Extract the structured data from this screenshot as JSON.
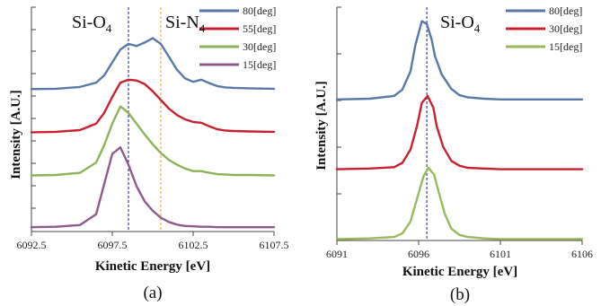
{
  "chart_data": [
    {
      "type": "line",
      "panel_label": "(a)",
      "xlabel": "Kinetic Energy [eV]",
      "ylabel": "Intensity [A.U.]",
      "xlim": [
        6092.5,
        6107.5
      ],
      "x_ticks": [
        "6092.5",
        "6097.5",
        "6102.5",
        "6107.5"
      ],
      "y_tick_labels": "none",
      "grid": false,
      "legend_position": "top-right",
      "annotations": [
        {
          "label": "Si-O",
          "subscript": "4",
          "reference_line_x": 6098.5,
          "line_style": "dashed",
          "line_color": "#1a1a8c"
        },
        {
          "label": "Si-N",
          "subscript": "4",
          "reference_line_x": 6100.5,
          "line_style": "dashed",
          "line_color": "#e8a317"
        }
      ],
      "series": [
        {
          "name": "80[deg]",
          "color": "#5879a8",
          "offset": 3.2,
          "x": [
            6092.5,
            6094,
            6095.5,
            6096.5,
            6097,
            6097.5,
            6098,
            6098.5,
            6099,
            6099.5,
            6100,
            6100.5,
            6101,
            6101.5,
            6102,
            6102.5,
            6103,
            6103.5,
            6104,
            6104.5,
            6105,
            6106,
            6107.5
          ],
          "y": [
            0,
            0.01,
            0.05,
            0.15,
            0.32,
            0.62,
            0.92,
            1.05,
            1.0,
            1.08,
            1.18,
            1.05,
            0.75,
            0.45,
            0.25,
            0.17,
            0.22,
            0.14,
            0.07,
            0.04,
            0.03,
            0.02,
            0.01
          ]
        },
        {
          "name": "55[deg]",
          "color": "#c8202f",
          "offset": 2.2,
          "x": [
            6092.5,
            6094,
            6095.5,
            6096.5,
            6097,
            6097.5,
            6098,
            6098.5,
            6099,
            6099.5,
            6100,
            6100.5,
            6101,
            6101.5,
            6102,
            6102.5,
            6103,
            6103.5,
            6104,
            6104.5,
            6105,
            6106,
            6107.5
          ],
          "y": [
            0,
            0.01,
            0.05,
            0.2,
            0.45,
            0.82,
            1.15,
            1.22,
            1.2,
            1.12,
            0.95,
            0.75,
            0.55,
            0.4,
            0.3,
            0.24,
            0.22,
            0.14,
            0.07,
            0.04,
            0.03,
            0.02,
            0.01
          ]
        },
        {
          "name": "30[deg]",
          "color": "#8db35a",
          "offset": 1.2,
          "x": [
            6092.5,
            6094,
            6095.5,
            6096.5,
            6097,
            6097.5,
            6098,
            6098.5,
            6099,
            6099.5,
            6100,
            6100.5,
            6101,
            6101.5,
            6102,
            6102.5,
            6103,
            6103.5,
            6104,
            6104.5,
            6105,
            6106,
            6107.5
          ],
          "y": [
            0,
            0.01,
            0.06,
            0.3,
            0.7,
            1.2,
            1.6,
            1.45,
            1.2,
            0.95,
            0.72,
            0.52,
            0.36,
            0.25,
            0.16,
            0.1,
            0.1,
            0.06,
            0.03,
            0.02,
            0.01,
            0.01,
            0.0
          ]
        },
        {
          "name": "15[deg]",
          "color": "#8c5b8c",
          "offset": 0,
          "x": [
            6092.5,
            6094,
            6095.5,
            6096.5,
            6097,
            6097.5,
            6098,
            6098.5,
            6099,
            6099.5,
            6100,
            6100.5,
            6101,
            6101.5,
            6102,
            6102.5,
            6103,
            6103.5,
            6104,
            6104.5,
            6105,
            6106,
            6107.5
          ],
          "y": [
            0,
            0.01,
            0.05,
            0.3,
            1.0,
            1.7,
            1.85,
            1.45,
            0.95,
            0.6,
            0.38,
            0.22,
            0.12,
            0.06,
            0.03,
            0.02,
            0.01,
            0.01,
            0.0,
            0.0,
            0.0,
            0.0,
            0.0
          ]
        }
      ]
    },
    {
      "type": "line",
      "panel_label": "(b)",
      "xlabel": "Kinetic Energy [eV]",
      "ylabel": "Intensity [A.U.]",
      "xlim": [
        6091,
        6106
      ],
      "x_ticks": [
        "6091",
        "6096",
        "6101",
        "6106"
      ],
      "y_tick_labels": "none",
      "grid": false,
      "legend_position": "top-right",
      "annotations": [
        {
          "label": "Si-O",
          "subscript": "4",
          "reference_line_x": 6096.5,
          "line_style": "dashed",
          "line_color": "#1a1a8c"
        }
      ],
      "series": [
        {
          "name": "80[deg]",
          "color": "#5879a8",
          "offset": 2.0,
          "x": [
            6091,
            6093,
            6094.5,
            6095,
            6095.5,
            6095.8,
            6096.2,
            6096.5,
            6096.8,
            6097,
            6097.4,
            6098,
            6098.5,
            6099,
            6100,
            6101,
            6103,
            6106
          ],
          "y": [
            0,
            0.01,
            0.05,
            0.14,
            0.4,
            0.78,
            1.12,
            1.08,
            0.85,
            0.62,
            0.36,
            0.15,
            0.06,
            0.03,
            0.01,
            0.0,
            0.0,
            0.0
          ]
        },
        {
          "name": "30[deg]",
          "color": "#c8202f",
          "offset": 1.0,
          "x": [
            6091,
            6093,
            6094.5,
            6095,
            6095.5,
            6095.9,
            6096.2,
            6096.55,
            6096.9,
            6097.1,
            6097.5,
            6098,
            6098.5,
            6099,
            6100,
            6101,
            6103,
            6106
          ],
          "y": [
            0,
            0.01,
            0.03,
            0.09,
            0.28,
            0.62,
            0.95,
            1.05,
            0.88,
            0.62,
            0.32,
            0.12,
            0.05,
            0.02,
            0.01,
            0.0,
            0.0,
            0.0
          ]
        },
        {
          "name": "15[deg]",
          "color": "#9ab85e",
          "offset": 0,
          "x": [
            6091,
            6093,
            6094.5,
            6095,
            6095.5,
            6095.9,
            6096.3,
            6096.6,
            6096.95,
            6097.2,
            6097.6,
            6098,
            6098.5,
            6099,
            6100,
            6101,
            6103,
            6106
          ],
          "y": [
            0,
            0.01,
            0.03,
            0.08,
            0.25,
            0.58,
            0.9,
            1.02,
            0.92,
            0.7,
            0.36,
            0.15,
            0.06,
            0.03,
            0.01,
            0.0,
            0.0,
            0.0
          ]
        }
      ]
    }
  ]
}
